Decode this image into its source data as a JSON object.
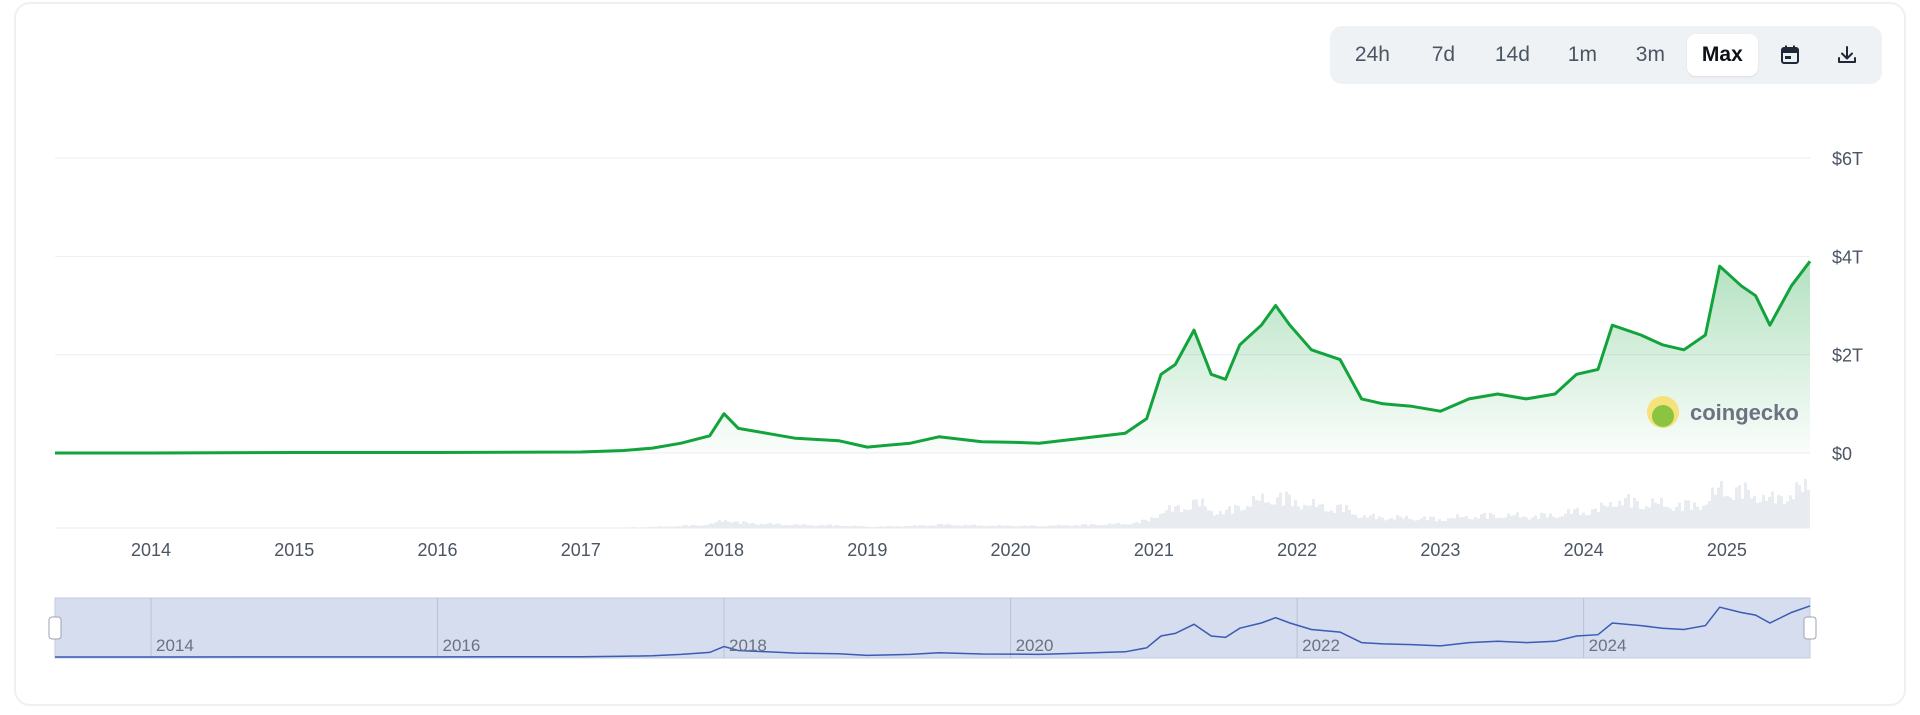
{
  "toolbar": {
    "ranges": [
      "24h",
      "7d",
      "14d",
      "1m",
      "3m",
      "Max"
    ],
    "active_range": "Max",
    "calendar_icon": "calendar-icon",
    "download_icon": "download-icon"
  },
  "watermark": {
    "brand": "coingecko",
    "icon": "gecko-logo-icon"
  },
  "colors": {
    "line": "#12a33c",
    "area_top": "#12a33c",
    "volume": "#e8ebef",
    "navigator_bg": "#d6ddee",
    "navigator_line": "#3b5bb5",
    "grid": "#eceef1",
    "label": "#4b5563"
  },
  "chart_data": {
    "type": "area",
    "yaxis": {
      "ticks": [
        "$0",
        "$2T",
        "$4T",
        "$6T"
      ],
      "values": [
        0,
        2,
        4,
        6
      ],
      "unit": "trillion USD",
      "range": [
        0,
        6
      ]
    },
    "xaxis": {
      "ticks": [
        "2014",
        "2015",
        "2016",
        "2017",
        "2018",
        "2019",
        "2020",
        "2021",
        "2022",
        "2023",
        "2024",
        "2025"
      ],
      "range": [
        2013.33,
        2025.58
      ]
    },
    "navigator_ticks": [
      "2014",
      "2016",
      "2018",
      "2020",
      "2022",
      "2024"
    ],
    "series": [
      {
        "x": [
          2013.33,
          2014.0,
          2015.0,
          2016.0,
          2017.0,
          2017.3,
          2017.5,
          2017.7,
          2017.9,
          2018.0,
          2018.1,
          2018.3,
          2018.5,
          2018.8,
          2019.0,
          2019.3,
          2019.5,
          2019.8,
          2020.0,
          2020.2,
          2020.5,
          2020.8,
          2020.95,
          2021.05,
          2021.15,
          2021.28,
          2021.4,
          2021.5,
          2021.6,
          2021.75,
          2021.85,
          2021.95,
          2022.1,
          2022.3,
          2022.45,
          2022.6,
          2022.8,
          2023.0,
          2023.2,
          2023.4,
          2023.6,
          2023.8,
          2023.95,
          2024.1,
          2024.2,
          2024.4,
          2024.55,
          2024.7,
          2024.85,
          2024.95,
          2025.1,
          2025.2,
          2025.3,
          2025.45,
          2025.58
        ],
        "values": [
          0.0,
          0.0,
          0.01,
          0.01,
          0.02,
          0.05,
          0.1,
          0.2,
          0.35,
          0.8,
          0.5,
          0.4,
          0.3,
          0.25,
          0.12,
          0.2,
          0.33,
          0.23,
          0.22,
          0.2,
          0.3,
          0.4,
          0.7,
          1.6,
          1.8,
          2.5,
          1.6,
          1.5,
          2.2,
          2.6,
          3.0,
          2.6,
          2.1,
          1.9,
          1.1,
          1.0,
          0.95,
          0.85,
          1.1,
          1.2,
          1.1,
          1.2,
          1.6,
          1.7,
          2.6,
          2.4,
          2.2,
          2.1,
          2.4,
          3.8,
          3.4,
          3.2,
          2.6,
          3.4,
          3.9
        ]
      }
    ]
  }
}
